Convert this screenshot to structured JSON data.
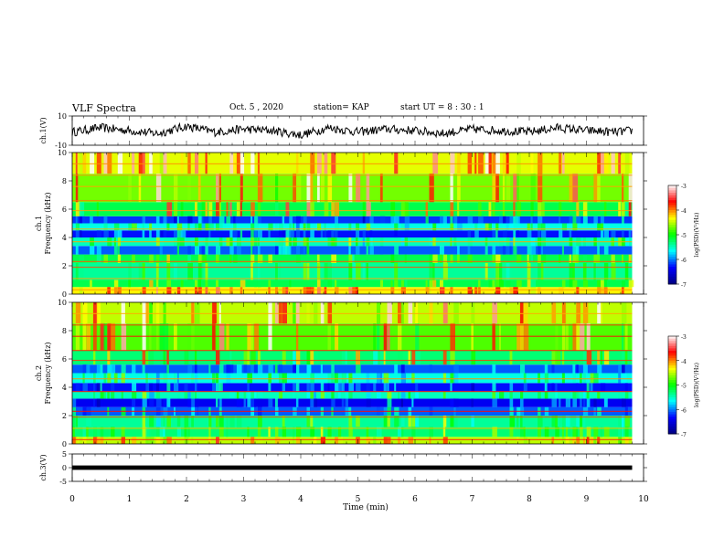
{
  "header": {
    "title": "VLF Spectra",
    "date": "Oct. 5 , 2020",
    "station": "station= KAP",
    "start": "start  UT =  8 : 30 : 1"
  },
  "colors": {
    "waveform_line": "#000000",
    "background": "#ffffff",
    "colormap": [
      "#000080",
      "#0000ff",
      "#00ffff",
      "#00ff00",
      "#ffff00",
      "#ff0000",
      "#ffffff"
    ]
  },
  "chart_data": [
    {
      "type": "line",
      "name": "ch1-waveform",
      "ylabel": "ch.1(V)",
      "ylim": [
        -10,
        10
      ],
      "yticks": [
        "10",
        "-10"
      ],
      "xlim": [
        0,
        10
      ],
      "x": [
        0,
        0.5,
        1,
        1.5,
        2,
        2.5,
        3,
        3.5,
        4,
        4.5,
        5,
        5.5,
        6,
        6.5,
        7,
        7.5,
        8,
        8.5,
        9,
        9.5,
        9.8
      ],
      "y": [
        -1,
        2,
        0,
        -2,
        3,
        -1,
        1,
        0,
        -3,
        2,
        -1,
        1,
        0,
        -2,
        1,
        0,
        -1,
        2,
        0,
        -1,
        0
      ]
    },
    {
      "type": "heatmap",
      "name": "ch1-spectrogram",
      "ylabel": "ch.1\nFrequency (kHz)",
      "ylim": [
        0,
        10
      ],
      "yticks": [
        "0",
        "2",
        "4",
        "6",
        "8",
        "10"
      ],
      "xlim": [
        0,
        10
      ],
      "data_end_min": 9.8,
      "colorbar": {
        "label": "log(PSD)(V²/Hz)",
        "ticks": [
          "-3",
          "-4",
          "-5",
          "-6",
          "-7"
        ],
        "range": [
          -7,
          -3
        ]
      },
      "bands": [
        {
          "f0": 0,
          "f1": 0.5,
          "level": -4.3
        },
        {
          "f0": 0.5,
          "f1": 1.0,
          "level": -5.2
        },
        {
          "f0": 1.0,
          "f1": 2.2,
          "level": -5.4
        },
        {
          "f0": 2.2,
          "f1": 2.8,
          "level": -5.2
        },
        {
          "f0": 2.8,
          "f1": 3.4,
          "level": -6.1
        },
        {
          "f0": 3.4,
          "f1": 4.0,
          "level": -5.5
        },
        {
          "f0": 4.0,
          "f1": 4.5,
          "level": -6.3
        },
        {
          "f0": 4.5,
          "f1": 5.0,
          "level": -5.6
        },
        {
          "f0": 5.0,
          "f1": 5.5,
          "level": -6.2
        },
        {
          "f0": 5.5,
          "f1": 6.5,
          "level": -5.2
        },
        {
          "f0": 6.5,
          "f1": 8.5,
          "level": -4.7
        },
        {
          "f0": 8.5,
          "f1": 10.0,
          "level": -4.4
        }
      ]
    },
    {
      "type": "heatmap",
      "name": "ch2-spectrogram",
      "ylabel": "ch.2\nFrequency (kHz)",
      "ylim": [
        0,
        10
      ],
      "yticks": [
        "0",
        "2",
        "4",
        "6",
        "8",
        "10"
      ],
      "xlim": [
        0,
        10
      ],
      "data_end_min": 9.8,
      "colorbar": {
        "label": "log(PSD)(V²/Hz)",
        "ticks": [
          "-3",
          "-4",
          "-5",
          "-6",
          "-7"
        ],
        "range": [
          -7,
          -3
        ]
      },
      "bands": [
        {
          "f0": 0,
          "f1": 0.5,
          "level": -4.5
        },
        {
          "f0": 0.5,
          "f1": 1.2,
          "level": -5.3
        },
        {
          "f0": 1.2,
          "f1": 2.0,
          "level": -5.4
        },
        {
          "f0": 2.0,
          "f1": 2.6,
          "level": -6.1
        },
        {
          "f0": 2.6,
          "f1": 3.2,
          "level": -6.4
        },
        {
          "f0": 3.2,
          "f1": 3.7,
          "level": -5.5
        },
        {
          "f0": 3.7,
          "f1": 4.3,
          "level": -6.3
        },
        {
          "f0": 4.3,
          "f1": 5.0,
          "level": -5.6
        },
        {
          "f0": 5.0,
          "f1": 5.6,
          "level": -6.1
        },
        {
          "f0": 5.6,
          "f1": 6.6,
          "level": -5.3
        },
        {
          "f0": 6.6,
          "f1": 8.5,
          "level": -4.8
        },
        {
          "f0": 8.5,
          "f1": 10.0,
          "level": -4.5
        }
      ]
    },
    {
      "type": "line",
      "name": "ch3-waveform",
      "ylabel": "ch.3(V)",
      "ylim": [
        -5,
        5
      ],
      "yticks": [
        "5",
        "0",
        "-5"
      ],
      "xlim": [
        0,
        10
      ],
      "band": [
        -0.8,
        0.8
      ]
    }
  ],
  "xaxis": {
    "label": "Time (min)",
    "ticks": [
      "0",
      "1",
      "2",
      "3",
      "4",
      "5",
      "6",
      "7",
      "8",
      "9",
      "10"
    ]
  }
}
